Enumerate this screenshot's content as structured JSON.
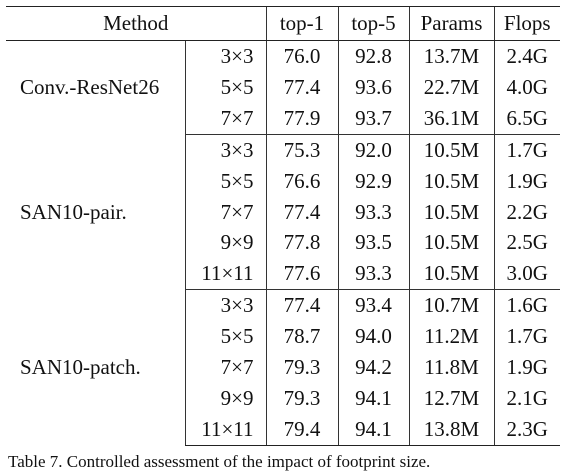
{
  "table": {
    "headers": {
      "method": "Method",
      "top1": "top-1",
      "top5": "top-5",
      "params": "Params",
      "flops": "Flops"
    },
    "groups": [
      {
        "name": "Conv.-ResNet26",
        "rows": [
          {
            "size": "3×3",
            "top1": "76.0",
            "top5": "92.8",
            "params": "13.7M",
            "flops": "2.4G"
          },
          {
            "size": "5×5",
            "top1": "77.4",
            "top5": "93.6",
            "params": "22.7M",
            "flops": "4.0G"
          },
          {
            "size": "7×7",
            "top1": "77.9",
            "top5": "93.7",
            "params": "36.1M",
            "flops": "6.5G"
          }
        ]
      },
      {
        "name": "SAN10-pair.",
        "rows": [
          {
            "size": "3×3",
            "top1": "75.3",
            "top5": "92.0",
            "params": "10.5M",
            "flops": "1.7G"
          },
          {
            "size": "5×5",
            "top1": "76.6",
            "top5": "92.9",
            "params": "10.5M",
            "flops": "1.9G"
          },
          {
            "size": "7×7",
            "top1": "77.4",
            "top5": "93.3",
            "params": "10.5M",
            "flops": "2.2G"
          },
          {
            "size": "9×9",
            "top1": "77.8",
            "top5": "93.5",
            "params": "10.5M",
            "flops": "2.5G"
          },
          {
            "size": "11×11",
            "top1": "77.6",
            "top5": "93.3",
            "params": "10.5M",
            "flops": "3.0G"
          }
        ]
      },
      {
        "name": "SAN10-patch.",
        "rows": [
          {
            "size": "3×3",
            "top1": "77.4",
            "top5": "93.4",
            "params": "10.7M",
            "flops": "1.6G"
          },
          {
            "size": "5×5",
            "top1": "78.7",
            "top5": "94.0",
            "params": "11.2M",
            "flops": "1.7G"
          },
          {
            "size": "7×7",
            "top1": "79.3",
            "top5": "94.2",
            "params": "11.8M",
            "flops": "1.9G"
          },
          {
            "size": "9×9",
            "top1": "79.3",
            "top5": "94.1",
            "params": "12.7M",
            "flops": "2.1G"
          },
          {
            "size": "11×11",
            "top1": "79.4",
            "top5": "94.1",
            "params": "13.8M",
            "flops": "2.3G"
          }
        ]
      }
    ]
  },
  "caption": "Table 7. Controlled assessment of the impact of footprint size."
}
